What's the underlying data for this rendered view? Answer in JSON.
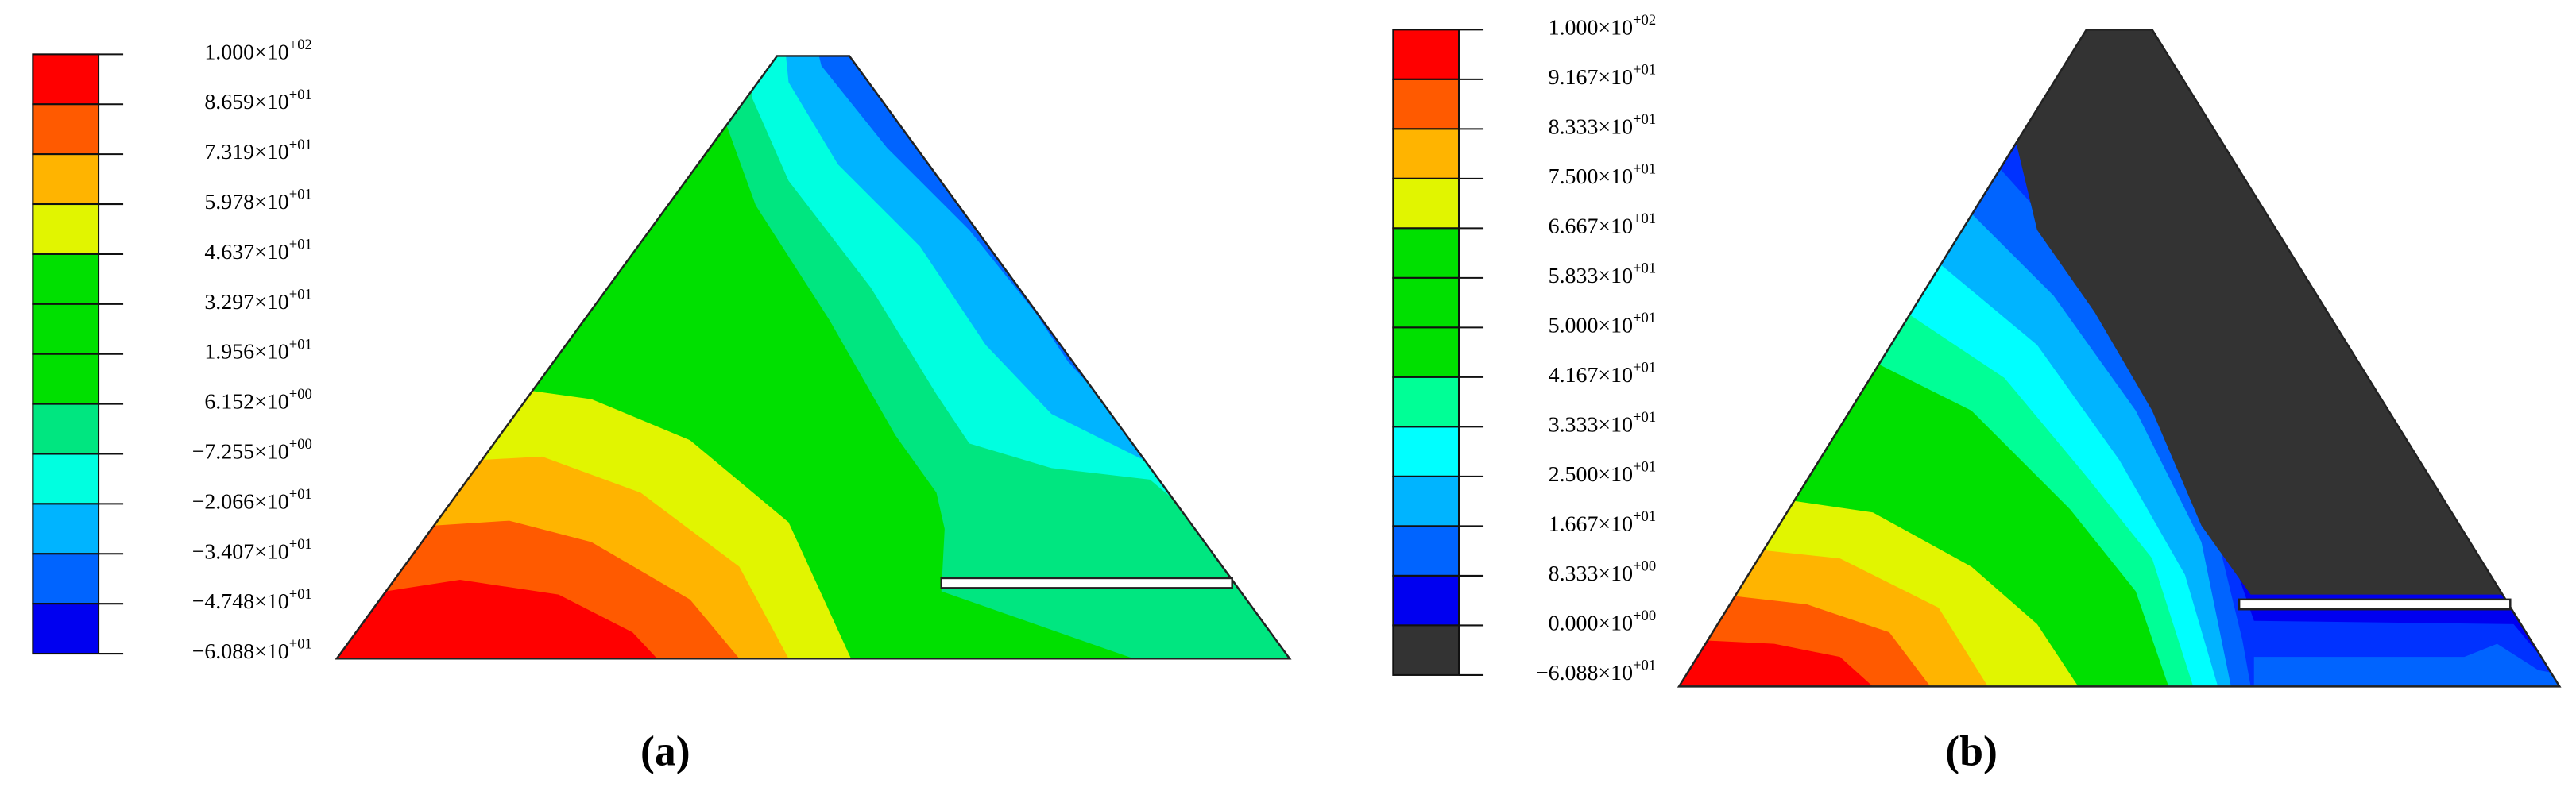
{
  "panels": [
    {
      "caption": "(a)",
      "colorbar": {
        "colors": [
          "#ff0000",
          "#ff5a00",
          "#ffb400",
          "#e1f500",
          "#00e000",
          "#00e000",
          "#00e000",
          "#00e680",
          "#00ffe0",
          "#00b4ff",
          "#0064ff",
          "#0000f0"
        ],
        "labels": [
          {
            "mantissa": "1.000×10",
            "exponent": "+02"
          },
          {
            "mantissa": "8.659×10",
            "exponent": "+01"
          },
          {
            "mantissa": "7.319×10",
            "exponent": "+01"
          },
          {
            "mantissa": "5.978×10",
            "exponent": "+01"
          },
          {
            "mantissa": "4.637×10",
            "exponent": "+01"
          },
          {
            "mantissa": "3.297×10",
            "exponent": "+01"
          },
          {
            "mantissa": "1.956×10",
            "exponent": "+01"
          },
          {
            "mantissa": "6.152×10",
            "exponent": "+00"
          },
          {
            "mantissa": "−7.255×10",
            "exponent": "+00"
          },
          {
            "mantissa": "−2.066×10",
            "exponent": "+01"
          },
          {
            "mantissa": "−3.407×10",
            "exponent": "+01"
          },
          {
            "mantissa": "−4.748×10",
            "exponent": "+01"
          },
          {
            "mantissa": "−6.088×10",
            "exponent": "+01"
          }
        ]
      }
    },
    {
      "caption": "(b)",
      "colorbar": {
        "colors": [
          "#ff0000",
          "#ff5a00",
          "#ffb400",
          "#e1f500",
          "#00e000",
          "#00e000",
          "#00e000",
          "#00ff96",
          "#00ffff",
          "#00b4ff",
          "#0064ff",
          "#0000f0",
          "#333333"
        ],
        "labels": [
          {
            "mantissa": "1.000×10",
            "exponent": "+02"
          },
          {
            "mantissa": "9.167×10",
            "exponent": "+01"
          },
          {
            "mantissa": "8.333×10",
            "exponent": "+01"
          },
          {
            "mantissa": "7.500×10",
            "exponent": "+01"
          },
          {
            "mantissa": "6.667×10",
            "exponent": "+01"
          },
          {
            "mantissa": "5.833×10",
            "exponent": "+01"
          },
          {
            "mantissa": "5.000×10",
            "exponent": "+01"
          },
          {
            "mantissa": "4.167×10",
            "exponent": "+01"
          },
          {
            "mantissa": "3.333×10",
            "exponent": "+01"
          },
          {
            "mantissa": "2.500×10",
            "exponent": "+01"
          },
          {
            "mantissa": "1.667×10",
            "exponent": "+01"
          },
          {
            "mantissa": "8.333×10",
            "exponent": "+00"
          },
          {
            "mantissa": "0.000×10",
            "exponent": "+00"
          },
          {
            "mantissa": "−6.088×10",
            "exponent": "+01"
          }
        ]
      }
    }
  ]
}
